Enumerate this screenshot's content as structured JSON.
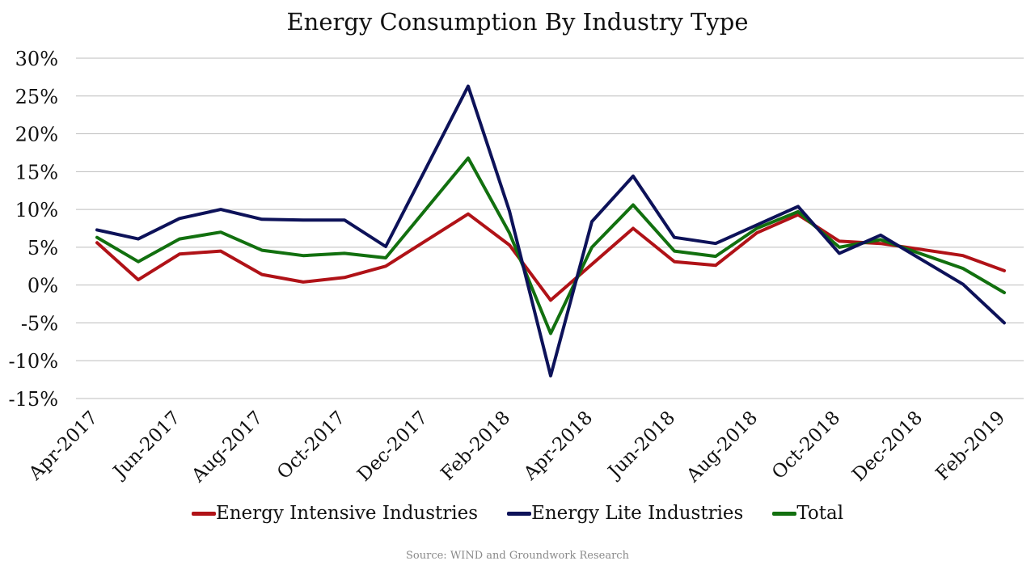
{
  "chart_data": {
    "type": "line",
    "title": "Energy Consumption By Industry Type",
    "xlabel": "",
    "ylabel": "",
    "ylim": [
      -15,
      30
    ],
    "y_ticks": [
      "30%",
      "25%",
      "20%",
      "15%",
      "10%",
      "5%",
      "0%",
      "-5%",
      "-10%",
      "-15%"
    ],
    "y_tick_values": [
      30,
      25,
      20,
      15,
      10,
      5,
      0,
      -5,
      -10,
      -15
    ],
    "x": [
      "Apr-2017",
      "May-2017",
      "Jun-2017",
      "Jul-2017",
      "Aug-2017",
      "Sep-2017",
      "Oct-2017",
      "Nov-2017",
      "Dec-2017",
      "Jan-2018",
      "Feb-2018",
      "Mar-2018",
      "Apr-2018",
      "May-2018",
      "Jun-2018",
      "Jul-2018",
      "Aug-2018",
      "Sep-2018",
      "Oct-2018",
      "Nov-2018",
      "Dec-2018",
      "Jan-2019",
      "Feb-2019"
    ],
    "x_tick_labels": [
      "Apr-2017",
      "Jun-2017",
      "Aug-2017",
      "Oct-2017",
      "Dec-2017",
      "Feb-2018",
      "Apr-2018",
      "Jun-2018",
      "Aug-2018",
      "Oct-2018",
      "Dec-2018",
      "Feb-2019"
    ],
    "grid": true,
    "legend_position": "bottom",
    "series": [
      {
        "name": "Energy Intensive Industries",
        "color": "#b01217",
        "values": [
          5.6,
          0.7,
          4.1,
          4.5,
          1.4,
          0.4,
          1.0,
          2.5,
          null,
          9.4,
          5.3,
          -2.0,
          null,
          7.5,
          3.1,
          2.6,
          6.9,
          9.3,
          5.8,
          5.5,
          null,
          3.9,
          1.9
        ]
      },
      {
        "name": "Energy Lite Industries",
        "color": "#0d1259",
        "values": [
          7.3,
          6.1,
          8.8,
          10.0,
          8.7,
          8.6,
          8.6,
          5.1,
          null,
          26.3,
          9.8,
          -12.0,
          8.4,
          14.4,
          6.3,
          5.5,
          null,
          10.4,
          4.2,
          6.6,
          null,
          0.1,
          -5.0
        ]
      },
      {
        "name": "Total",
        "color": "#12700f",
        "values": [
          6.3,
          3.1,
          6.1,
          7.0,
          4.6,
          3.9,
          4.2,
          3.6,
          null,
          16.8,
          6.9,
          -6.4,
          5.0,
          10.6,
          4.5,
          3.8,
          7.5,
          9.7,
          5.0,
          6.0,
          null,
          2.2,
          -1.0
        ]
      }
    ]
  },
  "source_note": "Source: WIND and Groundwork Research"
}
